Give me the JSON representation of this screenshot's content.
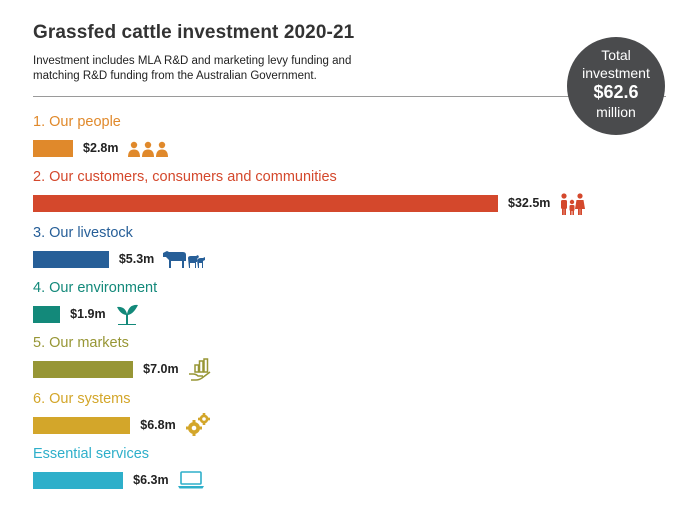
{
  "header": {
    "title": "Grassfed cattle investment 2020-21",
    "subtitle": "Investment includes MLA R&D and marketing levy funding and matching R&D funding from the Australian Government."
  },
  "total_badge": {
    "line1": "Total",
    "line2": "investment",
    "amount": "$62.6",
    "unit": "million"
  },
  "chart_data": {
    "type": "bar",
    "title": "Grassfed cattle investment 2020-21",
    "orientation": "horizontal",
    "unit": "$m",
    "categories": [
      "1. Our people",
      "2. Our customers, consumers and communities",
      "3. Our livestock",
      "4. Our environment",
      "5. Our markets",
      "6. Our systems",
      "Essential services"
    ],
    "values": [
      2.8,
      32.5,
      5.3,
      1.9,
      7.0,
      6.8,
      6.3
    ],
    "value_labels": [
      "$2.8m",
      "$32.5m",
      "$5.3m",
      "$1.9m",
      "$7.0m",
      "$6.8m",
      "$6.3m"
    ],
    "colors": [
      "#e0892b",
      "#d4482c",
      "#275f98",
      "#13897a",
      "#979635",
      "#d3a62a",
      "#2eafca"
    ],
    "icons": [
      "people-icon",
      "family-icon",
      "livestock-icon",
      "sprout-icon",
      "markets-icon",
      "gears-icon",
      "laptop-icon"
    ],
    "xlim": [
      0,
      32.5
    ],
    "grid": false,
    "legend": "none"
  }
}
